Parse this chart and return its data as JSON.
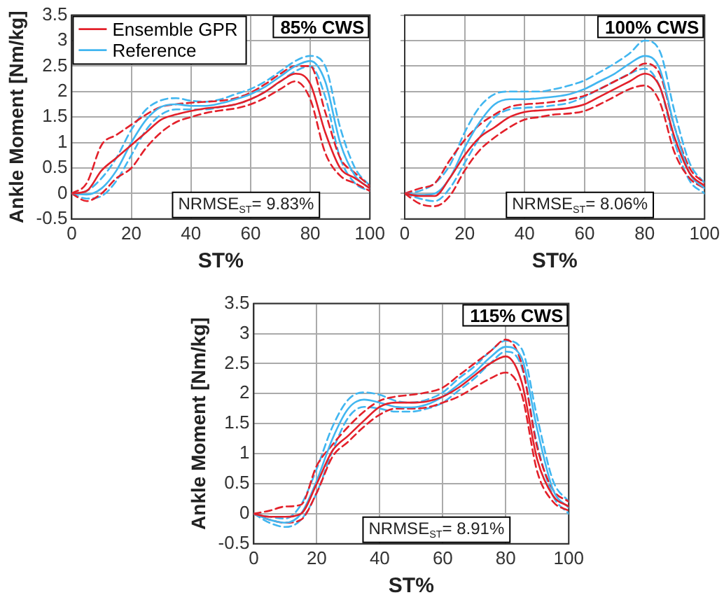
{
  "chart_data": [
    {
      "type": "line",
      "title": "85% CWS",
      "xlabel": "ST%",
      "ylabel": "Ankle Moment [Nm/kg]",
      "annotations": [
        "NRMSE$_{ST}$= 9.83%"
      ],
      "xlim": [
        0,
        100
      ],
      "xticks": [
        0,
        20,
        40,
        60,
        80,
        100
      ],
      "ylim": [
        -0.5,
        3.5
      ],
      "yticks": [
        -0.5,
        0,
        0.5,
        1,
        1.5,
        2,
        2.5,
        3,
        3.5
      ],
      "grid": true,
      "legend": "top left",
      "marker": "none",
      "x": [
        0,
        5,
        10,
        15,
        20,
        25,
        30,
        35,
        40,
        45,
        50,
        55,
        60,
        65,
        70,
        75,
        80,
        85,
        90,
        95,
        100
      ],
      "series": [
        {
          "name": "Ensemble GPR",
          "color": "#e3202a",
          "line_style": "solid",
          "values": [
            0,
            0.05,
            0.45,
            0.7,
            0.95,
            1.2,
            1.45,
            1.55,
            1.62,
            1.67,
            1.7,
            1.75,
            1.85,
            2.0,
            2.2,
            2.35,
            2.15,
            1.2,
            0.5,
            0.3,
            0.1
          ]
        },
        {
          "name": "Reference",
          "color": "#41b6f0",
          "line_style": "solid",
          "values": [
            0,
            -0.02,
            0.1,
            0.45,
            1.0,
            1.45,
            1.7,
            1.75,
            1.72,
            1.72,
            1.77,
            1.85,
            1.95,
            2.1,
            2.3,
            2.5,
            2.6,
            2.2,
            1.0,
            0.35,
            0.1
          ]
        },
        {
          "color": "#e3202a",
          "line_style": "dashed",
          "values": [
            0,
            -0.15,
            0.0,
            0.3,
            0.5,
            0.9,
            1.2,
            1.4,
            1.5,
            1.58,
            1.63,
            1.67,
            1.75,
            1.88,
            2.05,
            2.2,
            1.85,
            0.8,
            0.35,
            0.2,
            0.05
          ]
        },
        {
          "color": "#e3202a",
          "line_style": "dashed",
          "values": [
            0,
            0.2,
            0.95,
            1.15,
            1.35,
            1.55,
            1.7,
            1.75,
            1.78,
            1.8,
            1.82,
            1.87,
            1.98,
            2.15,
            2.35,
            2.5,
            2.5,
            1.6,
            0.7,
            0.4,
            0.15
          ]
        },
        {
          "color": "#41b6f0",
          "line_style": "dashed",
          "values": [
            0,
            -0.1,
            -0.05,
            0.25,
            0.75,
            1.25,
            1.55,
            1.65,
            1.65,
            1.65,
            1.7,
            1.75,
            1.85,
            2.0,
            2.2,
            2.4,
            2.5,
            1.9,
            0.7,
            0.2,
            0.05
          ]
        },
        {
          "color": "#41b6f0",
          "line_style": "dashed",
          "values": [
            0,
            0.05,
            0.3,
            0.7,
            1.25,
            1.65,
            1.83,
            1.87,
            1.82,
            1.8,
            1.85,
            1.95,
            2.05,
            2.2,
            2.4,
            2.6,
            2.7,
            2.5,
            1.3,
            0.5,
            0.15
          ]
        }
      ]
    },
    {
      "type": "line",
      "title": "100% CWS",
      "xlabel": "ST%",
      "annotations": [
        "NRMSE$_{ST}$= 8.06%"
      ],
      "xlim": [
        0,
        100
      ],
      "xticks": [
        0,
        20,
        40,
        60,
        80,
        100
      ],
      "ylim": [
        -0.5,
        3.5
      ],
      "yticks": [
        -0.5,
        0,
        0.5,
        1,
        1.5,
        2,
        2.5,
        3,
        3.5
      ],
      "grid": true,
      "tick_labels": "x",
      "marker": "none",
      "x": [
        0,
        5,
        10,
        15,
        20,
        25,
        30,
        35,
        40,
        45,
        50,
        55,
        60,
        65,
        70,
        75,
        80,
        85,
        90,
        95,
        100
      ],
      "series": [
        {
          "color": "#e3202a",
          "line_style": "solid",
          "values": [
            0,
            -0.05,
            -0.05,
            0.3,
            0.75,
            1.1,
            1.3,
            1.5,
            1.6,
            1.63,
            1.65,
            1.68,
            1.75,
            1.9,
            2.05,
            2.2,
            2.35,
            2.1,
            1.1,
            0.4,
            0.15
          ]
        },
        {
          "color": "#41b6f0",
          "line_style": "solid",
          "values": [
            0,
            -0.03,
            0.0,
            0.3,
            0.9,
            1.4,
            1.75,
            1.85,
            1.85,
            1.87,
            1.9,
            1.95,
            2.05,
            2.2,
            2.35,
            2.55,
            2.7,
            2.45,
            1.3,
            0.4,
            0.1
          ]
        },
        {
          "color": "#e3202a",
          "line_style": "dashed",
          "values": [
            0,
            -0.2,
            -0.25,
            -0.05,
            0.45,
            0.85,
            1.1,
            1.3,
            1.45,
            1.5,
            1.55,
            1.57,
            1.62,
            1.75,
            1.9,
            2.05,
            2.12,
            1.8,
            0.8,
            0.3,
            0.1
          ]
        },
        {
          "color": "#e3202a",
          "line_style": "dashed",
          "values": [
            0,
            0.1,
            0.2,
            0.65,
            1.05,
            1.35,
            1.55,
            1.7,
            1.75,
            1.77,
            1.8,
            1.85,
            1.92,
            2.05,
            2.2,
            2.35,
            2.55,
            2.35,
            1.3,
            0.5,
            0.2
          ]
        },
        {
          "color": "#41b6f0",
          "line_style": "dashed",
          "values": [
            0,
            -0.1,
            -0.15,
            0.1,
            0.6,
            1.1,
            1.5,
            1.65,
            1.68,
            1.7,
            1.73,
            1.78,
            1.9,
            2.05,
            2.2,
            2.35,
            2.45,
            2.1,
            1.0,
            0.25,
            0.0
          ]
        },
        {
          "color": "#41b6f0",
          "line_style": "dashed",
          "values": [
            0,
            0.05,
            0.2,
            0.55,
            1.2,
            1.7,
            1.95,
            2.0,
            2.0,
            2.0,
            2.05,
            2.12,
            2.22,
            2.38,
            2.55,
            2.75,
            3.0,
            2.8,
            1.6,
            0.6,
            0.2
          ]
        }
      ]
    },
    {
      "type": "line",
      "title": "115% CWS",
      "xlabel": "ST%",
      "ylabel": "Ankle Moment [Nm/kg]",
      "annotations": [
        "NRMSE$_{ST}$= 8.91%"
      ],
      "xlim": [
        0,
        100
      ],
      "xticks": [
        0,
        20,
        40,
        60,
        80,
        100
      ],
      "ylim": [
        -0.5,
        3.5
      ],
      "yticks": [
        -0.5,
        0,
        0.5,
        1,
        1.5,
        2,
        2.5,
        3,
        3.5
      ],
      "grid": true,
      "marker": "none",
      "x": [
        0,
        5,
        10,
        15,
        20,
        25,
        30,
        35,
        40,
        45,
        50,
        55,
        60,
        65,
        70,
        75,
        80,
        85,
        90,
        95,
        100
      ],
      "series": [
        {
          "color": "#e3202a",
          "line_style": "solid",
          "values": [
            0,
            -0.05,
            -0.05,
            0.0,
            0.5,
            1.05,
            1.3,
            1.55,
            1.78,
            1.85,
            1.85,
            1.87,
            1.95,
            2.1,
            2.3,
            2.5,
            2.62,
            2.2,
            0.9,
            0.3,
            0.12
          ]
        },
        {
          "color": "#41b6f0",
          "line_style": "solid",
          "values": [
            0,
            -0.1,
            -0.15,
            0.0,
            0.55,
            1.25,
            1.75,
            1.9,
            1.85,
            1.78,
            1.77,
            1.82,
            1.95,
            2.15,
            2.35,
            2.6,
            2.78,
            2.6,
            1.4,
            0.4,
            0.1
          ]
        },
        {
          "color": "#e3202a",
          "line_style": "dashed",
          "values": [
            0,
            -0.1,
            -0.15,
            -0.1,
            0.35,
            0.95,
            1.2,
            1.45,
            1.65,
            1.75,
            1.75,
            1.77,
            1.85,
            1.95,
            2.1,
            2.25,
            2.35,
            2.0,
            0.7,
            0.2,
            0.05
          ]
        },
        {
          "color": "#e3202a",
          "line_style": "dashed",
          "values": [
            0,
            0.05,
            0.12,
            0.15,
            0.8,
            1.15,
            1.45,
            1.7,
            1.88,
            1.95,
            1.98,
            2.02,
            2.1,
            2.3,
            2.5,
            2.7,
            2.9,
            2.5,
            1.1,
            0.4,
            0.2
          ]
        },
        {
          "color": "#41b6f0",
          "line_style": "dashed",
          "values": [
            0,
            -0.15,
            -0.22,
            -0.1,
            0.35,
            1.05,
            1.6,
            1.78,
            1.75,
            1.7,
            1.7,
            1.75,
            1.85,
            2.05,
            2.25,
            2.5,
            2.7,
            2.45,
            1.15,
            0.3,
            0.0
          ]
        },
        {
          "color": "#41b6f0",
          "line_style": "dashed",
          "values": [
            0,
            -0.05,
            -0.08,
            0.15,
            0.75,
            1.45,
            1.9,
            2.02,
            1.98,
            1.88,
            1.85,
            1.9,
            2.02,
            2.25,
            2.45,
            2.7,
            2.88,
            2.75,
            1.6,
            0.55,
            0.2
          ]
        }
      ]
    }
  ]
}
